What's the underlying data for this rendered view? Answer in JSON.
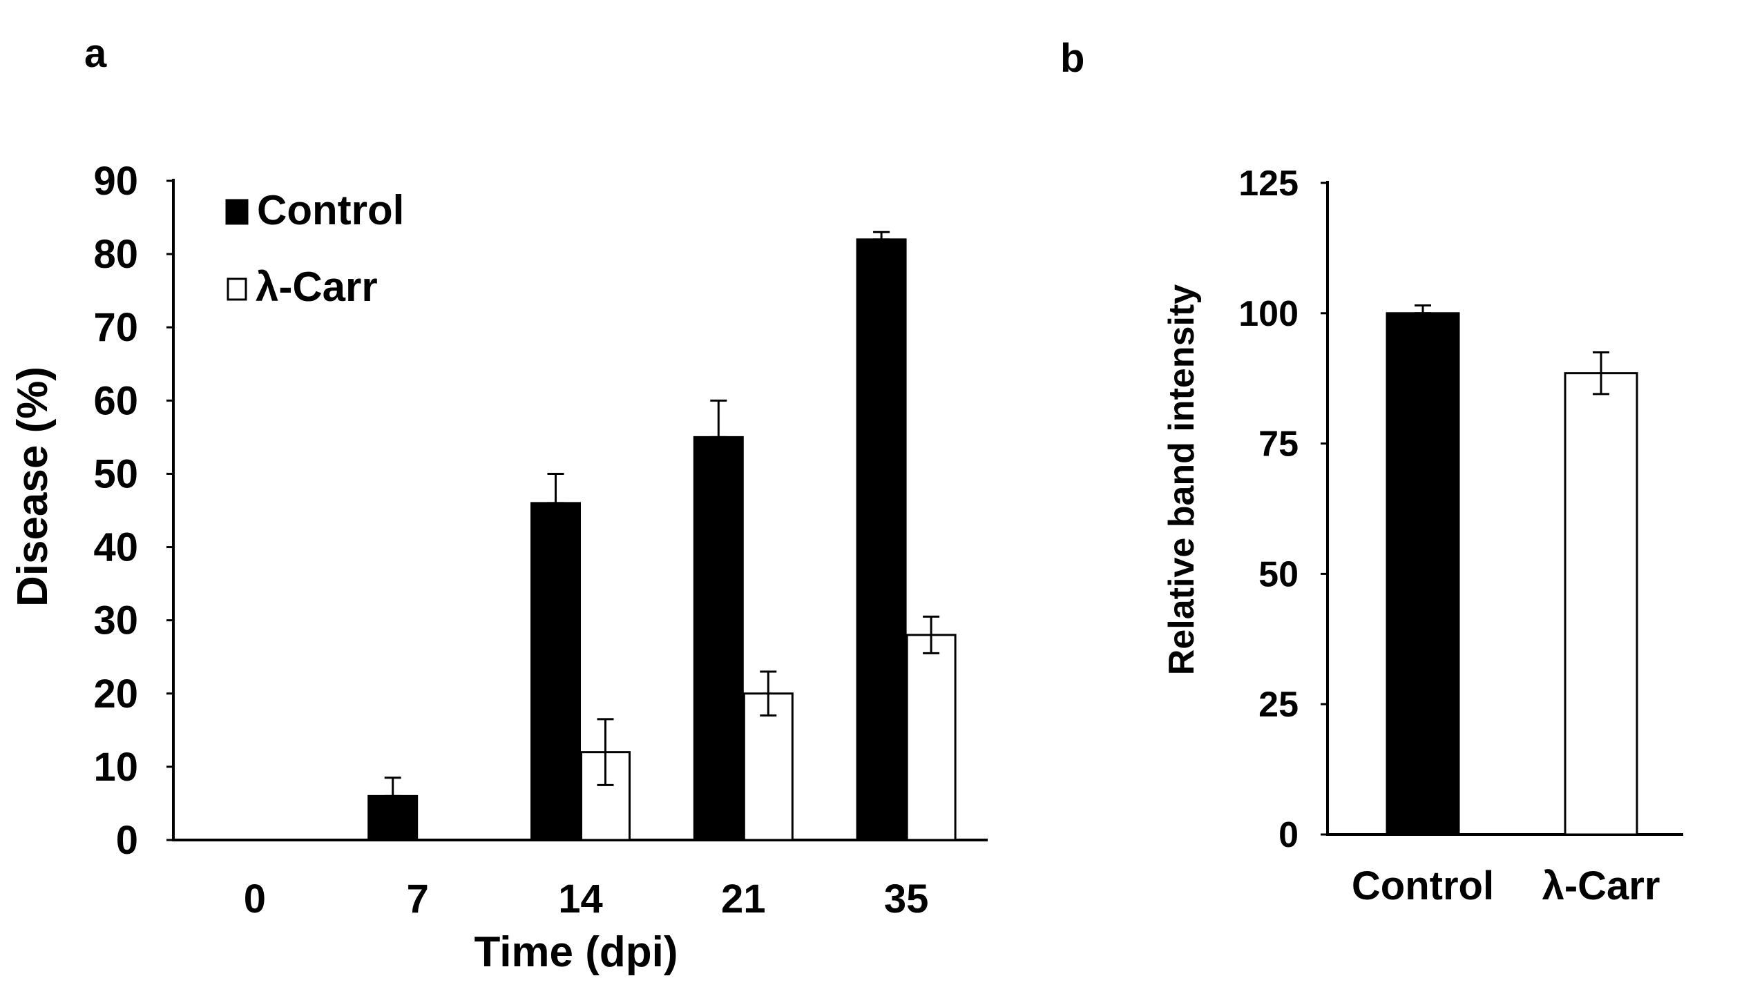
{
  "chart_data": [
    {
      "panel_label": "a",
      "type": "bar",
      "title": "",
      "xlabel": "Time (dpi)",
      "ylabel": "Disease (%)",
      "ylim": [
        0,
        90
      ],
      "yticks": [
        "0",
        "10",
        "20",
        "30",
        "40",
        "50",
        "60",
        "70",
        "80",
        "90"
      ],
      "categories": [
        "0",
        "7",
        "14",
        "21",
        "35"
      ],
      "legend_position": "top-left",
      "series": [
        {
          "name": "Control",
          "fill": "#000000",
          "values": [
            0,
            6,
            46,
            55,
            82
          ],
          "errors": [
            0,
            2.5,
            4,
            5,
            1
          ]
        },
        {
          "name": "λ-Carr",
          "fill": "#ffffff",
          "values": [
            0,
            0,
            12,
            20,
            28
          ],
          "errors": [
            0,
            0,
            4.5,
            3,
            2.5
          ]
        }
      ]
    },
    {
      "panel_label": "b",
      "type": "bar",
      "title": "",
      "xlabel": "",
      "ylabel": "Relative band  intensity",
      "ylim": [
        0,
        125
      ],
      "yticks": [
        "0",
        "25",
        "50",
        "75",
        "100",
        "125"
      ],
      "categories": [
        "Control",
        "λ-Carr"
      ],
      "series": [
        {
          "name": "Relative band intensity",
          "values": [
            100,
            88.5
          ],
          "errors": [
            1.5,
            4
          ],
          "fills": [
            "#000000",
            "#ffffff"
          ]
        }
      ]
    }
  ]
}
